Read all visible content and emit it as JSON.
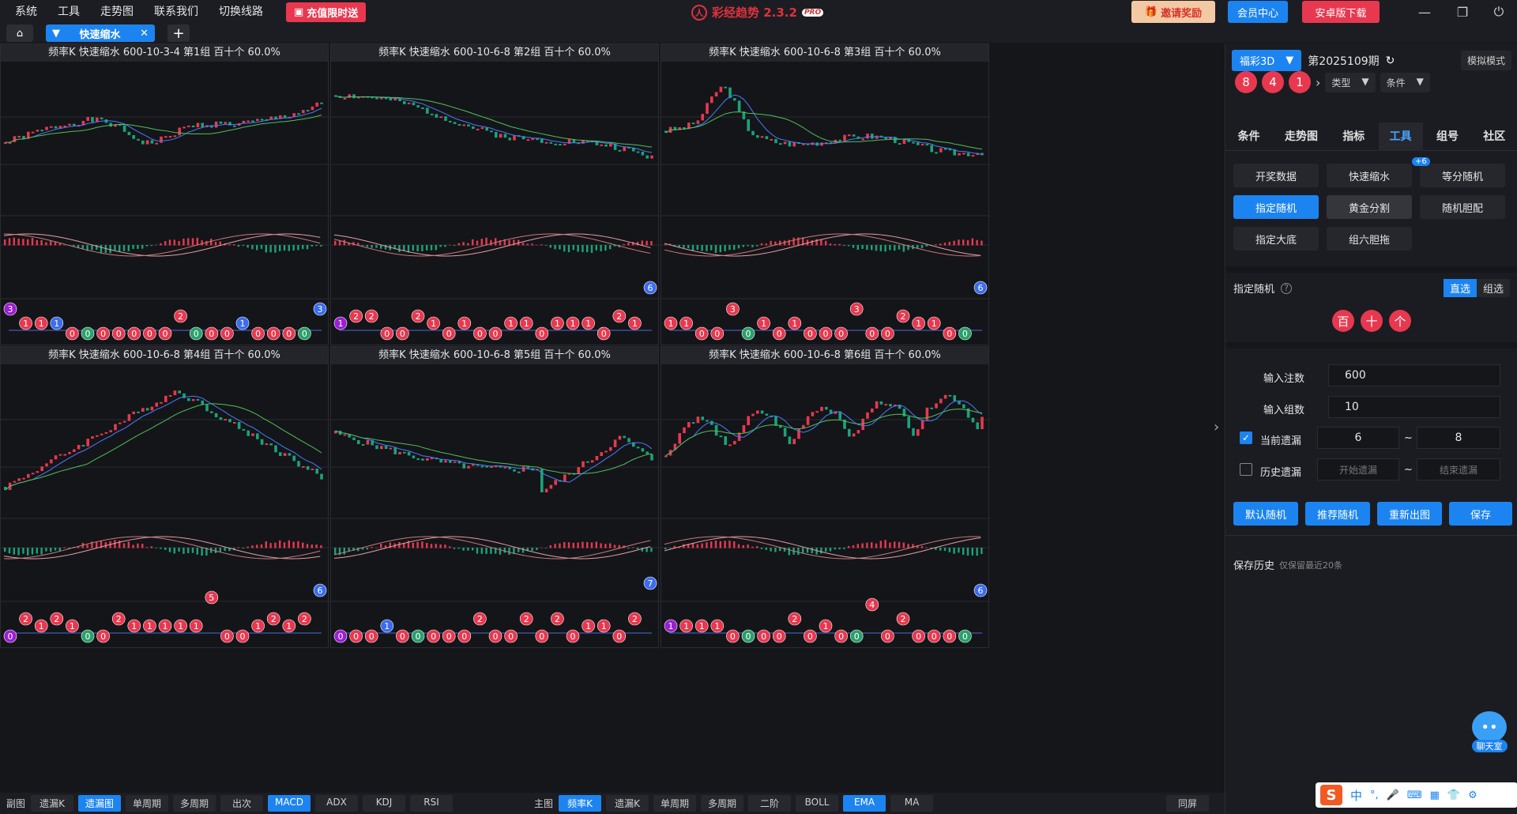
{
  "menu": [
    "系统",
    "工具",
    "走势图",
    "联系我们",
    "切换线路"
  ],
  "promo": "充值限时送",
  "app_title": "彩经趋势 2.3.2",
  "app_badge": "PRO",
  "top_buttons": {
    "invite": "邀请奖励",
    "member": "会员中心",
    "android": "安卓版下载"
  },
  "tab": {
    "label": "快速缩水"
  },
  "panels": [
    {
      "title": "频率K  快速缩水  600-10-3-4 第1组  百十个  60.0%",
      "seed": 1,
      "trend": "up",
      "digits": [
        3,
        1,
        1,
        1,
        0,
        0,
        0,
        0,
        0,
        0,
        0,
        2,
        0,
        0,
        0,
        1,
        0,
        0,
        0,
        0,
        3
      ]
    },
    {
      "title": "频率K  快速缩水  600-10-6-8 第2组  百十个  60.0%",
      "seed": 2,
      "trend": "down",
      "digits": [
        1,
        2,
        2,
        0,
        0,
        2,
        1,
        0,
        1,
        0,
        0,
        1,
        1,
        0,
        1,
        1,
        1,
        0,
        2,
        1,
        6
      ]
    },
    {
      "title": "频率K  快速缩水  600-10-6-8 第3组  百十个  60.0%",
      "seed": 3,
      "trend": "peakdown",
      "digits": [
        1,
        1,
        0,
        0,
        3,
        0,
        1,
        0,
        1,
        0,
        0,
        0,
        3,
        0,
        0,
        2,
        1,
        1,
        0,
        0,
        6
      ]
    },
    {
      "title": "频率K  快速缩水  600-10-6-8 第4组  百十个  60.0%",
      "seed": 4,
      "trend": "humpdown",
      "digits": [
        0,
        2,
        1,
        2,
        1,
        0,
        0,
        2,
        1,
        1,
        1,
        1,
        1,
        5,
        0,
        0,
        1,
        2,
        1,
        2,
        6
      ]
    },
    {
      "title": "频率K  快速缩水  600-10-6-8 第5组  百十个  60.0%",
      "seed": 5,
      "trend": "valleyup",
      "digits": [
        0,
        0,
        0,
        1,
        0,
        0,
        0,
        0,
        0,
        2,
        0,
        0,
        2,
        0,
        2,
        0,
        1,
        1,
        0,
        2,
        7
      ]
    },
    {
      "title": "频率K  快速缩水  600-10-6-8 第6组  百十个  60.0%",
      "seed": 6,
      "trend": "volatile",
      "digits": [
        1,
        1,
        1,
        1,
        0,
        0,
        0,
        0,
        2,
        0,
        1,
        0,
        0,
        4,
        0,
        2,
        0,
        0,
        0,
        0,
        6
      ]
    }
  ],
  "bottom": {
    "sub_label": "副图",
    "sub_items": [
      {
        "t": "遗漏K",
        "on": false
      },
      {
        "t": "遗漏图",
        "on": true
      },
      {
        "t": "单周期",
        "on": false
      },
      {
        "t": "多周期",
        "on": false
      },
      {
        "t": "出次",
        "on": false
      },
      {
        "t": "MACD",
        "on": true
      },
      {
        "t": "ADX",
        "on": false
      },
      {
        "t": "KDJ",
        "on": false
      },
      {
        "t": "RSI",
        "on": false
      }
    ],
    "main_label": "主图",
    "main_items": [
      {
        "t": "频率K",
        "on": true
      },
      {
        "t": "遗漏K",
        "on": false
      },
      {
        "t": "单周期",
        "on": false
      },
      {
        "t": "多周期",
        "on": false
      },
      {
        "t": "二阶",
        "on": false
      },
      {
        "t": "BOLL",
        "on": false
      },
      {
        "t": "EMA",
        "on": true
      },
      {
        "t": "MA",
        "on": false
      }
    ],
    "same_screen": "同屏"
  },
  "right": {
    "lottery": "福彩3D",
    "period": "第2025109期",
    "sim": "模拟模式",
    "balls": [
      "8",
      "4",
      "1"
    ],
    "type_dd": "类型",
    "cond_dd": "条件",
    "nav": [
      {
        "t": "条件",
        "on": false
      },
      {
        "t": "走势图",
        "on": false
      },
      {
        "t": "指标",
        "on": false
      },
      {
        "t": "工具",
        "on": true
      },
      {
        "t": "组号",
        "on": false
      },
      {
        "t": "社区",
        "on": false
      }
    ],
    "tools": [
      {
        "t": "开奖数据",
        "s": ""
      },
      {
        "t": "快速缩水",
        "s": ""
      },
      {
        "t": "等分随机",
        "s": ""
      },
      {
        "t": "指定随机",
        "s": "on"
      },
      {
        "t": "黄金分割",
        "s": "sel"
      },
      {
        "t": "随机胆配",
        "s": ""
      },
      {
        "t": "指定大底",
        "s": ""
      },
      {
        "t": "组六胆拖",
        "s": ""
      }
    ],
    "plus_badge": "+6",
    "section_title": "指定随机",
    "mode_direct": "直选",
    "mode_group": "组选",
    "pos": [
      "百",
      "十",
      "个"
    ],
    "in_count_label": "输入注数",
    "in_count": "600",
    "in_groups_label": "输入组数",
    "in_groups": "10",
    "cur_miss_label": "当前遗漏",
    "cur_miss_from": "6",
    "cur_miss_to": "8",
    "hist_miss_label": "历史遗漏",
    "hist_from_ph": "开始遗漏",
    "hist_to_ph": "结束遗漏",
    "tilde": "~",
    "actions": [
      "默认随机",
      "推荐随机",
      "重新出图",
      "保存"
    ],
    "history_label": "保存历史",
    "history_note": "仅保留最近20条",
    "chat": "聊天室"
  },
  "taskbar": [
    "中",
    "°,",
    "🎤",
    "⌨",
    "▦",
    "👕",
    "⚙"
  ],
  "colors": {
    "accent": "#1c84f0",
    "up": "#e8384f",
    "down": "#1aa37a",
    "ball_red": "#e8384f",
    "ball_blue": "#3b6cf0",
    "ball_green": "#2aa06b",
    "ball_purple": "#9a20d0"
  }
}
